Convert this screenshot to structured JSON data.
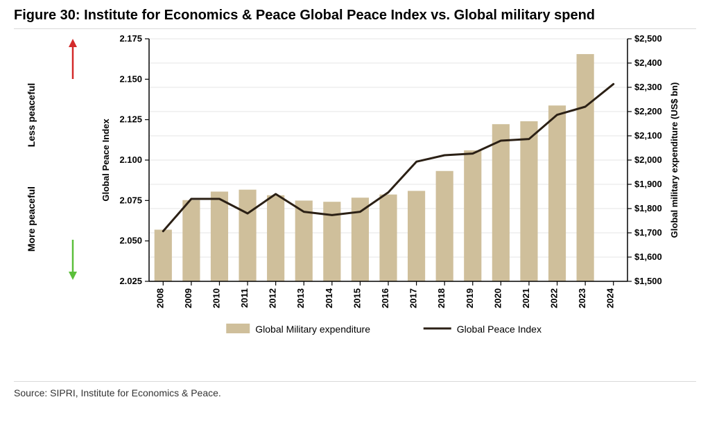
{
  "title": "Figure 30: Institute for Economics & Peace Global Peace Index vs. Global military spend",
  "source": "Source: SIPRI, Institute for Economics & Peace.",
  "annotations": {
    "less_peaceful": "Less peaceful",
    "more_peaceful": "More peaceful",
    "less_arrow_color": "#d32a2a",
    "more_arrow_color": "#5bbf3a"
  },
  "chart": {
    "type": "bar+line",
    "years": [
      "2008",
      "2009",
      "2010",
      "2011",
      "2012",
      "2013",
      "2014",
      "2015",
      "2016",
      "2017",
      "2018",
      "2019",
      "2020",
      "2021",
      "2022",
      "2023",
      "2024"
    ],
    "left_axis": {
      "label": "Global Peace Index",
      "min": 2.025,
      "max": 2.175,
      "step": 0.025,
      "ticks": [
        "2.025",
        "2.050",
        "2.075",
        "2.100",
        "2.125",
        "2.150",
        "2.175"
      ],
      "label_fontsize": 13,
      "tick_fontsize": 13,
      "font_weight": "700"
    },
    "right_axis": {
      "label": "Global military expenditure (US$ bn)",
      "min": 1500,
      "max": 2500,
      "step": 100,
      "ticks": [
        "$1,500",
        "$1,600",
        "$1,700",
        "$1,800",
        "$1,900",
        "$2,000",
        "$2,100",
        "$2,200",
        "$2,300",
        "$2,400",
        "$2,500"
      ],
      "label_fontsize": 13,
      "tick_fontsize": 13,
      "font_weight": "700"
    },
    "bars": {
      "series_label": "Global Military expenditure",
      "color": "#cfbf9b",
      "values_right_axis": [
        1713,
        1835,
        1870,
        1878,
        1855,
        1833,
        1828,
        1845,
        1858,
        1873,
        1955,
        2040,
        2148,
        2160,
        2225,
        2437,
        null
      ],
      "bar_width_fraction": 0.62
    },
    "line": {
      "series_label": "Global Peace Index",
      "color": "#2b2015",
      "width": 3,
      "values_left_axis": [
        2.056,
        2.076,
        2.076,
        2.067,
        2.079,
        2.068,
        2.066,
        2.068,
        2.08,
        2.099,
        2.103,
        2.104,
        2.112,
        2.113,
        2.128,
        2.133,
        2.147
      ]
    },
    "plot_bg": "#ffffff",
    "grid_color": "#e4e4e4",
    "border_color": "#000000",
    "legend": {
      "items": [
        {
          "label": "Global Military expenditure",
          "kind": "bar",
          "color": "#cfbf9b"
        },
        {
          "label": "Global Peace Index",
          "kind": "line",
          "color": "#2b2015"
        }
      ],
      "fontsize": 14
    },
    "x_tick_rotation": -90,
    "x_tick_fontsize": 13,
    "x_tick_font_weight": "700"
  }
}
